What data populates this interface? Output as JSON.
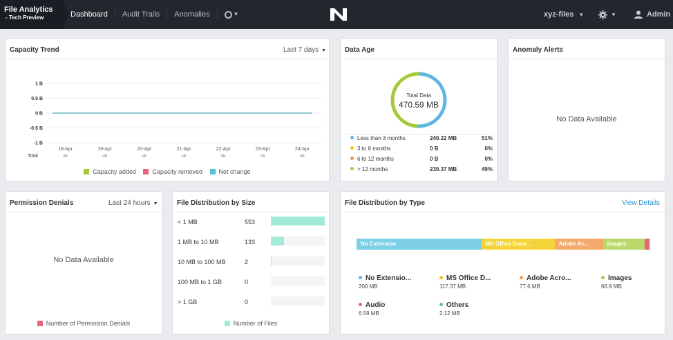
{
  "header": {
    "brand_title": "File Analytics",
    "brand_subtitle": "- Tech Preview",
    "nav": [
      {
        "label": "Dashboard"
      },
      {
        "label": "Audit Trails"
      },
      {
        "label": "Anomalies"
      }
    ],
    "server_name": "xyz-files",
    "user": "Admin"
  },
  "capacity_trend": {
    "title": "Capacity Trend",
    "range": "Last 7 days",
    "row_label": "Total",
    "legend": [
      {
        "label": "Capacity added",
        "color": "#a6c93c"
      },
      {
        "label": "Capacity removed",
        "color": "#e8647b"
      },
      {
        "label": "Net change",
        "color": "#56c0d8"
      }
    ]
  },
  "data_age": {
    "title": "Data Age",
    "center_label": "Total Data",
    "center_value": "470.59 MB",
    "rows": [
      {
        "label": "Less than 3 months",
        "size": "240.22 MB",
        "pct": "51%",
        "color": "#5cb8e0"
      },
      {
        "label": "3 to 6 months",
        "size": "0 B",
        "pct": "0%",
        "color": "#f2c318"
      },
      {
        "label": "6 to 12 months",
        "size": "0 B",
        "pct": "0%",
        "color": "#f0964a"
      },
      {
        "label": "> 12 months",
        "size": "230.37 MB",
        "pct": "49%",
        "color": "#a6c93c"
      }
    ]
  },
  "anomaly_alerts": {
    "title": "Anomaly Alerts",
    "empty": "No Data Available"
  },
  "permission_denials": {
    "title": "Permission Denials",
    "range": "Last 24 hours",
    "empty": "No Data Available",
    "legend": "Number of Permission Denials",
    "legend_color": "#e8647b"
  },
  "size_dist": {
    "title": "File Distribution by Size",
    "legend": "Number of Files",
    "bar_color": "#a3ebd8",
    "rows": [
      {
        "label": "< 1 MB",
        "count": "553",
        "value": 553
      },
      {
        "label": "1 MB to 10 MB",
        "count": "133",
        "value": 133
      },
      {
        "label": "10 MB to 100 MB",
        "count": "2",
        "value": 2
      },
      {
        "label": "100 MB to 1 GB",
        "count": "0",
        "value": 0
      },
      {
        "label": "> 1 GB",
        "count": "0",
        "value": 0
      }
    ]
  },
  "type_dist": {
    "title": "File Distribution by Type",
    "link": "View Details",
    "segments": [
      {
        "label": "No Extension",
        "value": 200,
        "color": "#7ccfe6"
      },
      {
        "label": "MS Office Docu...",
        "value": 117.37,
        "color": "#f5d33a"
      },
      {
        "label": "Adobe Ac...",
        "value": 77.6,
        "color": "#f3a96b"
      },
      {
        "label": "Images",
        "value": 66.9,
        "color": "#bad96a"
      },
      {
        "label": "",
        "value": 6.59,
        "color": "#e8647b"
      },
      {
        "label": "",
        "value": 2.12,
        "color": "#8bd39a"
      }
    ],
    "legend": [
      {
        "label": "No Extensio...",
        "size": "200 MB",
        "color": "#5cb8e0"
      },
      {
        "label": "MS Office D...",
        "size": "117.37 MB",
        "color": "#f2c318"
      },
      {
        "label": "Adobe Acro...",
        "size": "77.6 MB",
        "color": "#f0964a"
      },
      {
        "label": "Images",
        "size": "66.9 MB",
        "color": "#a6c93c"
      },
      {
        "label": "Audio",
        "size": "6.59 MB",
        "color": "#e8647b"
      },
      {
        "label": "Others",
        "size": "2.12 MB",
        "color": "#5cc48a"
      }
    ]
  },
  "chart_data": {
    "type": "line",
    "title": "Capacity Trend",
    "x": [
      "18-Apr",
      "19-Apr",
      "20-Apr",
      "21-Apr",
      "22-Apr",
      "23-Apr",
      "24-Apr"
    ],
    "x_sublabel": "0B",
    "y_ticks": [
      "1 B",
      "0.5 B",
      "0 B",
      "-0.5 B",
      "-1 B"
    ],
    "ylim": [
      -1,
      1
    ],
    "series": [
      {
        "name": "Capacity added",
        "values": [
          0,
          0,
          0,
          0,
          0,
          0,
          0
        ]
      },
      {
        "name": "Capacity removed",
        "values": [
          0,
          0,
          0,
          0,
          0,
          0,
          0
        ]
      },
      {
        "name": "Net change",
        "values": [
          0,
          0,
          0,
          0,
          0,
          0,
          0
        ]
      }
    ]
  }
}
